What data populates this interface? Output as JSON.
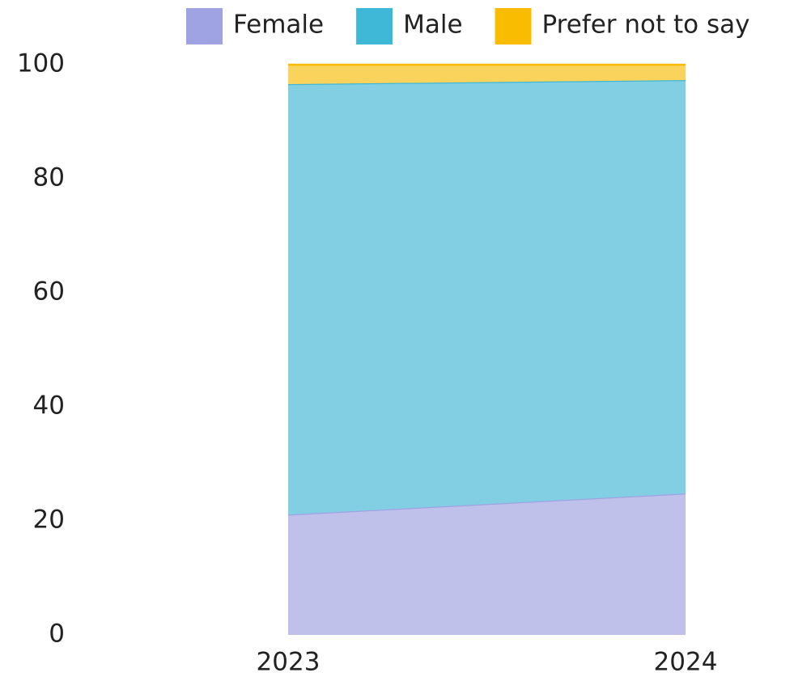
{
  "chart_data": {
    "type": "stacked_area",
    "categories": [
      "2023",
      "2024"
    ],
    "series": [
      {
        "name": "Female",
        "color": "#9fa3e3",
        "fill": "#bfc1ea",
        "values": [
          21.1,
          24.8
        ]
      },
      {
        "name": "Male",
        "color": "#3fb8d8",
        "fill": "#82cfe3",
        "values": [
          75.5,
          72.5
        ]
      },
      {
        "name": "Prefer not to say",
        "color": "#f9bc00",
        "fill": "#f9d35c",
        "values": [
          3.4,
          2.7
        ]
      }
    ],
    "ylim": [
      0,
      100
    ],
    "yticks": [
      0,
      20,
      40,
      60,
      80,
      100
    ],
    "grid": false,
    "legend": "top"
  }
}
